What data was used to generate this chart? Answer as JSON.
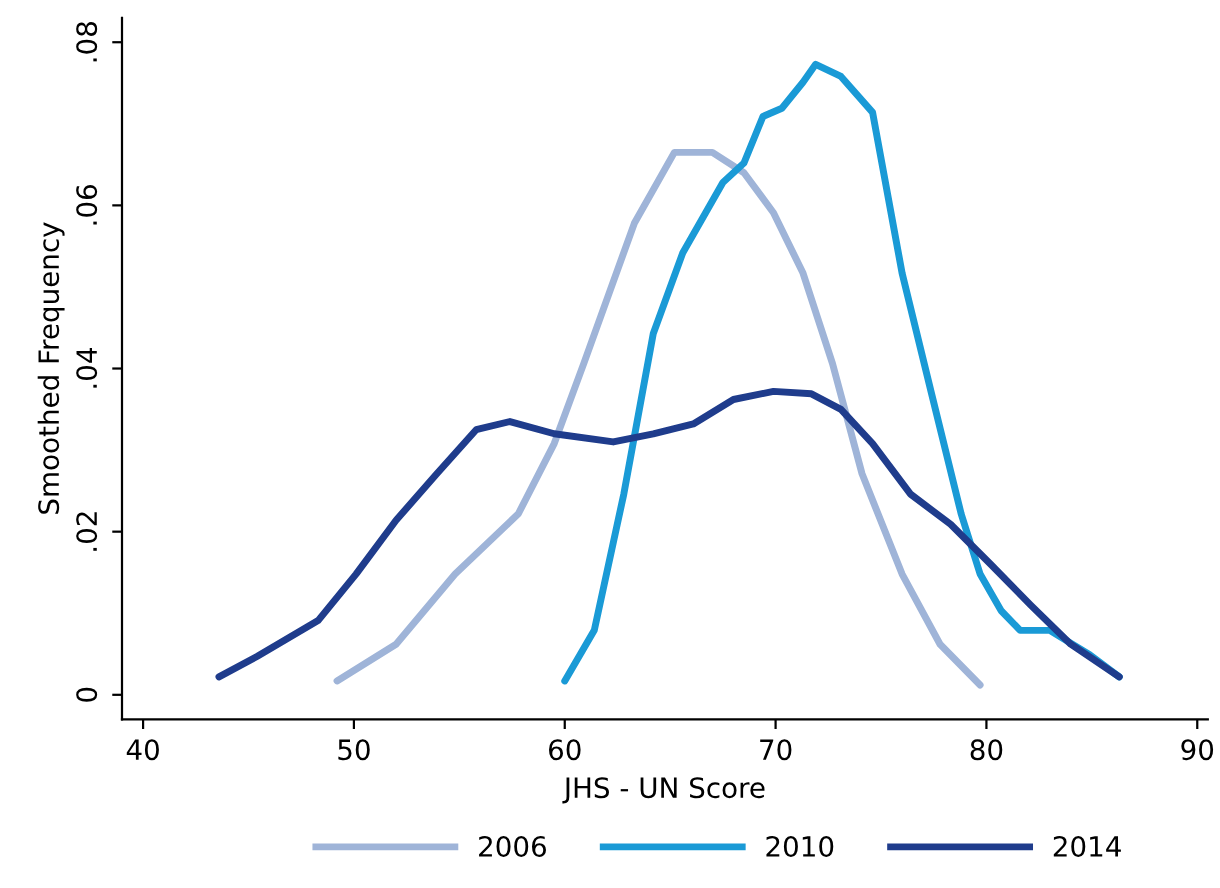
{
  "chart_data": {
    "type": "line",
    "xlabel": "JHS - UN Score",
    "ylabel": "Smoothed Frequency",
    "xlim": [
      39,
      90.5
    ],
    "ylim": [
      -0.003,
      0.083
    ],
    "xticks": [
      40,
      50,
      60,
      70,
      80,
      90
    ],
    "yticks": [
      0,
      {
        "value": 0.02,
        "label": ".02"
      },
      {
        "value": 0.04,
        "label": ".04"
      },
      {
        "value": 0.06,
        "label": ".06"
      },
      {
        "value": 0.08,
        "label": ".08"
      }
    ],
    "grid": false,
    "legend": "bottom",
    "marker": "none",
    "line_style": "solid",
    "series": [
      {
        "name": "2006",
        "color": "#9fb4d8",
        "x": [
          49.2,
          52,
          54.8,
          57.8,
          59.5,
          60.9,
          63.3,
          65.2,
          67,
          68.5,
          69.9,
          71.3,
          72.7,
          74.1,
          76,
          77.8,
          79.7
        ],
        "values": [
          0.0017,
          0.0062,
          0.0148,
          0.0222,
          0.0308,
          0.0406,
          0.0578,
          0.0665,
          0.0665,
          0.064,
          0.0591,
          0.0517,
          0.0406,
          0.0271,
          0.0148,
          0.0062,
          0.0012
        ]
      },
      {
        "name": "2010",
        "color": "#1a9ad6",
        "x": [
          60,
          61.4,
          62.8,
          64.2,
          65.6,
          67.5,
          68.5,
          69.4,
          70.3,
          71.3,
          71.9,
          73.1,
          74.6,
          76,
          77.4,
          78.8,
          79.7,
          80.7,
          81.6,
          83,
          84.9,
          86.3
        ],
        "values": [
          0.0017,
          0.0079,
          0.0246,
          0.0443,
          0.0542,
          0.0628,
          0.0652,
          0.0709,
          0.0719,
          0.0751,
          0.0773,
          0.0758,
          0.0714,
          0.0517,
          0.0369,
          0.0222,
          0.0148,
          0.0103,
          0.0079,
          0.0079,
          0.0049,
          0.0022
        ]
      },
      {
        "name": "2014",
        "color": "#1f3c8c",
        "x": [
          43.6,
          45.4,
          48.3,
          50.1,
          52,
          53.9,
          55.8,
          57.4,
          59.5,
          62.3,
          64.2,
          66.1,
          68,
          69.9,
          71.7,
          73.1,
          74.6,
          76.4,
          78.3,
          80.2,
          82.1,
          84,
          86.3
        ],
        "values": [
          0.0022,
          0.0047,
          0.0091,
          0.0148,
          0.0214,
          0.027,
          0.0325,
          0.0335,
          0.032,
          0.031,
          0.032,
          0.0332,
          0.0362,
          0.0372,
          0.0369,
          0.035,
          0.0308,
          0.0246,
          0.0209,
          0.016,
          0.011,
          0.0062,
          0.0022
        ]
      }
    ]
  }
}
